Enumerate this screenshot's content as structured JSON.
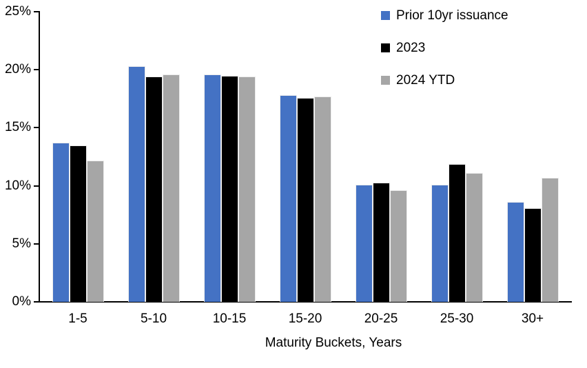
{
  "chart_data": {
    "type": "bar",
    "title": "",
    "categories": [
      "1-5",
      "5-10",
      "10-15",
      "15-20",
      "20-25",
      "25-30",
      "30+"
    ],
    "series": [
      {
        "name": "Prior 10yr issuance",
        "color": "#4472C4",
        "values": [
          13.7,
          20.3,
          19.6,
          17.8,
          10.1,
          10.1,
          8.6
        ]
      },
      {
        "name": "2023",
        "color": "#000000",
        "values": [
          13.5,
          19.4,
          19.5,
          17.6,
          10.3,
          11.9,
          8.1
        ]
      },
      {
        "name": "2024 YTD",
        "color": "#A6A6A6",
        "values": [
          12.2,
          19.6,
          19.4,
          17.7,
          9.6,
          11.1,
          10.7
        ]
      }
    ],
    "xlabel": "Maturity Buckets, Years",
    "ylabel": "",
    "ylim": [
      0,
      25
    ],
    "ytick_interval": 5,
    "ytick_labels": [
      "0%",
      "5%",
      "10%",
      "15%",
      "20%",
      "25%"
    ],
    "grid": false,
    "legend_position": "top-right",
    "axis_color": "#000000",
    "text_color": "#000000"
  }
}
